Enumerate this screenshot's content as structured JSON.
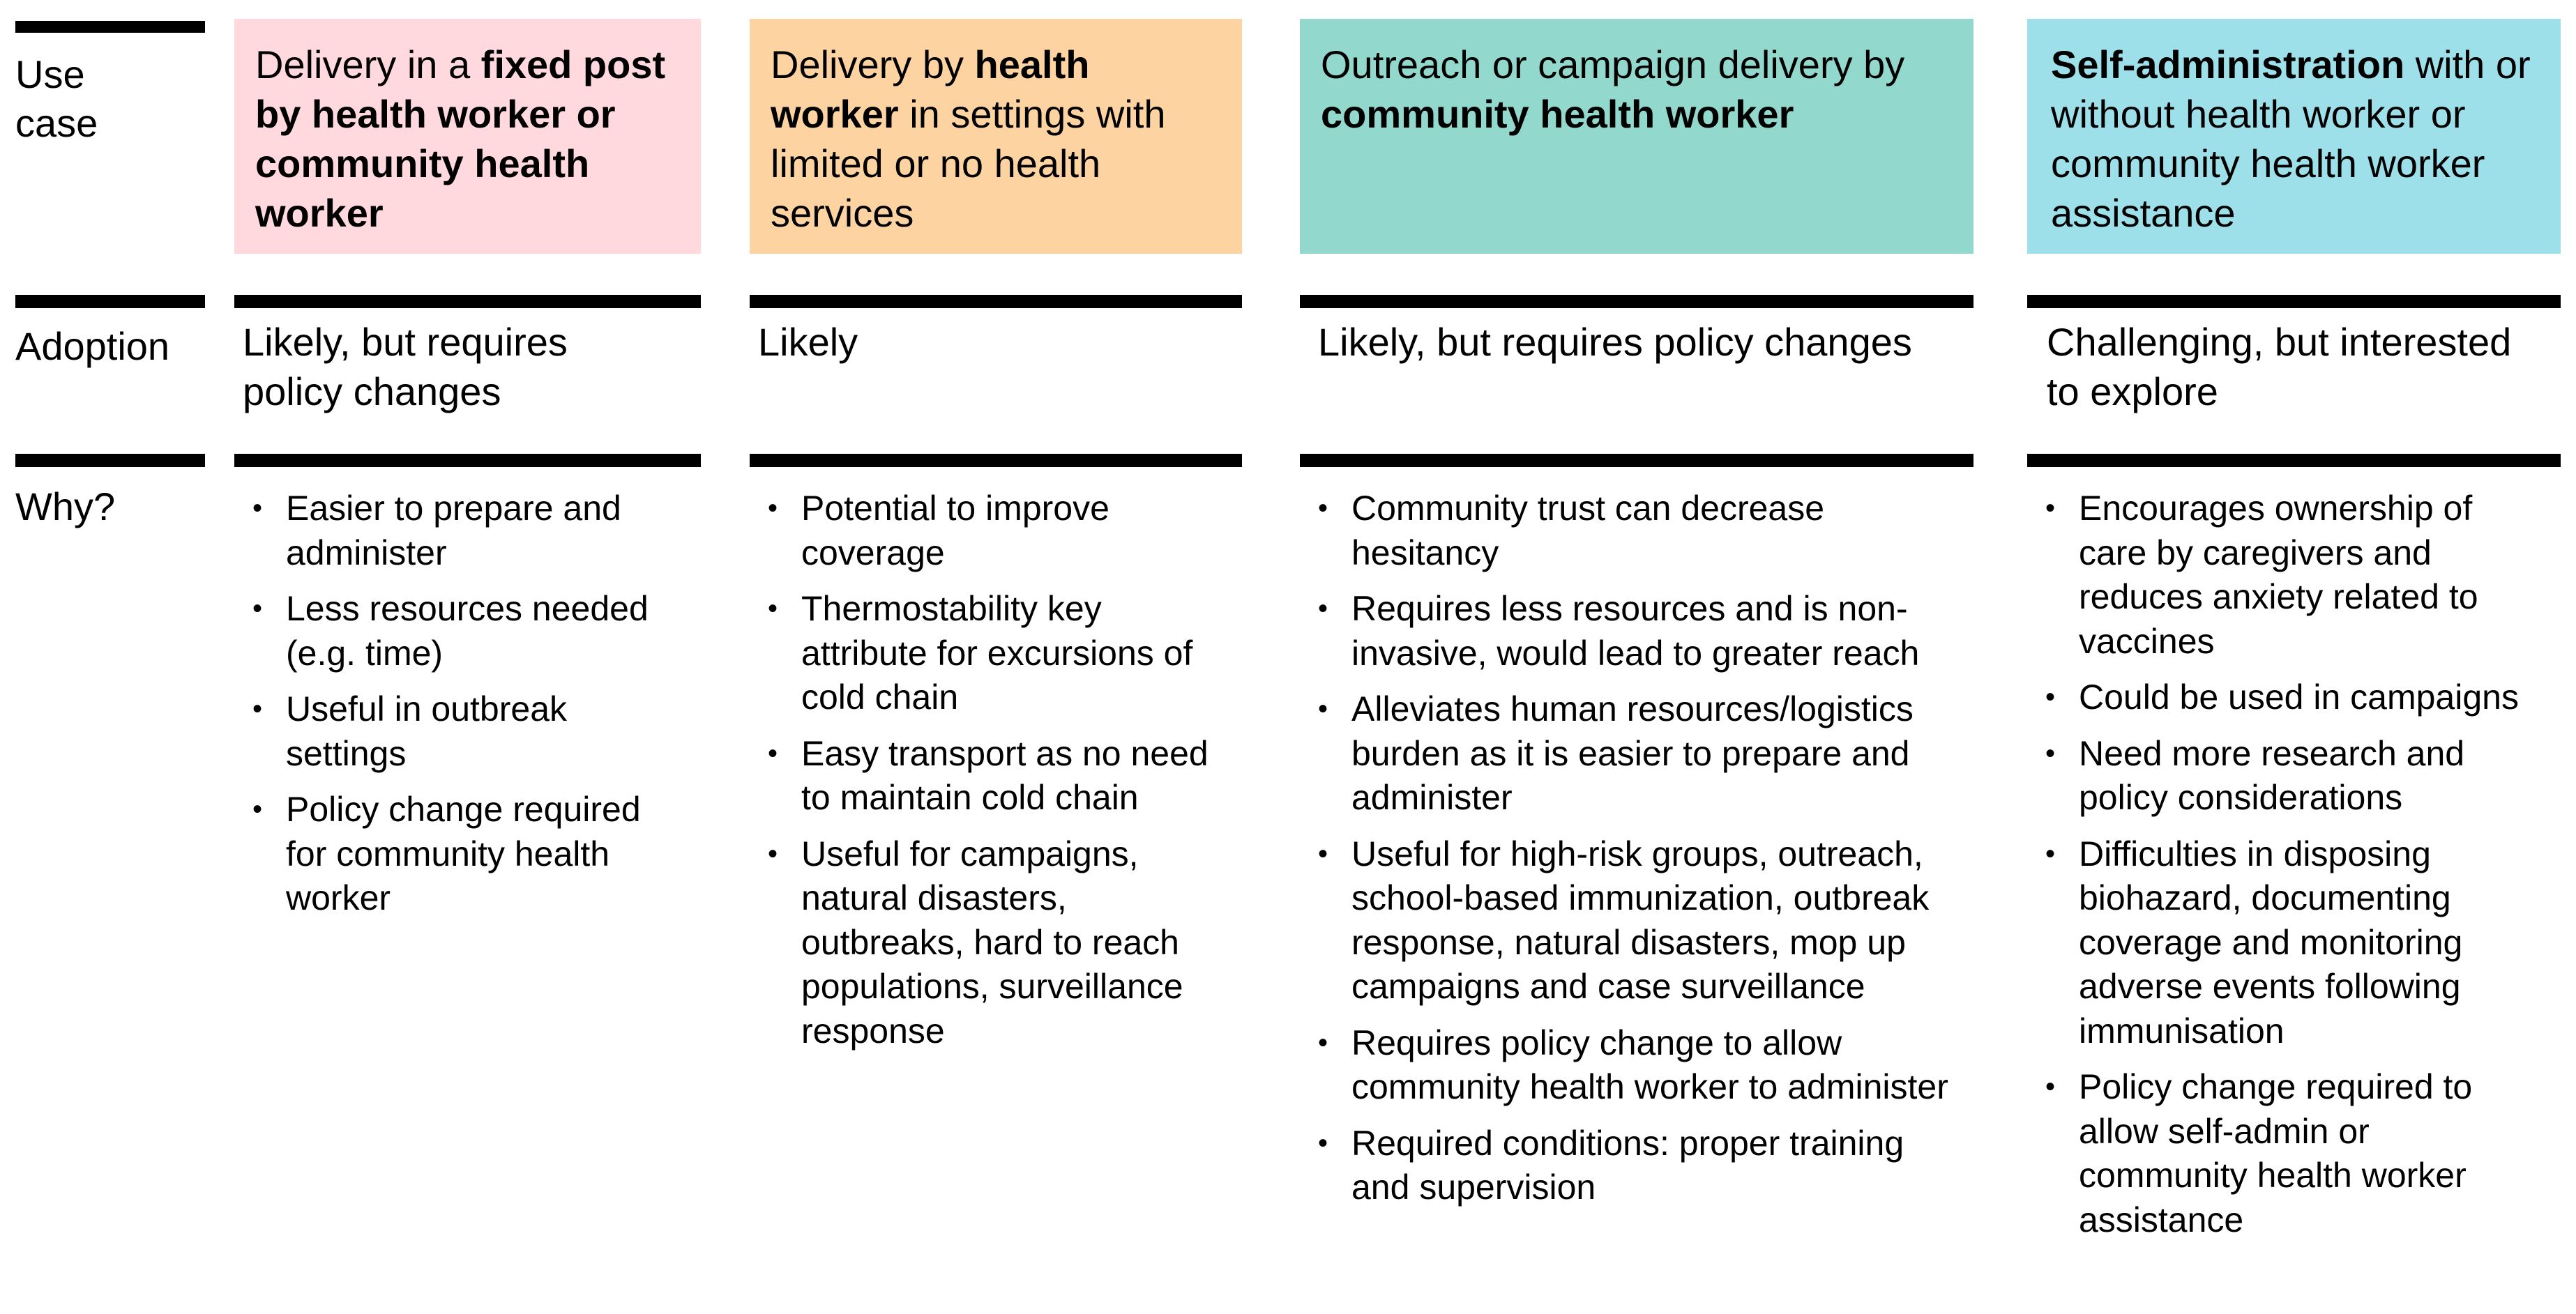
{
  "row_labels": {
    "use_case": "Use case",
    "adoption": "Adoption",
    "why": "Why?"
  },
  "colors": {
    "col1_header_bg": "#FFD9DE",
    "col2_header_bg": "#FDD4A1",
    "col3_header_bg": "#92D8CD",
    "col4_header_bg": "#9DE0EA",
    "rule": "#000000"
  },
  "columns": [
    {
      "header": {
        "part1": "Delivery in a ",
        "bold1": "fixed post by health worker or community health worker",
        "part2": ""
      },
      "adoption": "Likely, but requires policy changes",
      "why": [
        "Easier to prepare and administer",
        "Less resources needed (e.g. time)",
        "Useful in outbreak settings",
        "Policy change required for community health worker"
      ]
    },
    {
      "header": {
        "part1": "Delivery by ",
        "bold1": "health worker",
        "part2": " in settings with limited or no health services"
      },
      "adoption": "Likely",
      "why": [
        "Potential to improve coverage",
        "Thermostability key attribute for excursions of cold chain",
        "Easy transport as no need to maintain cold chain",
        "Useful for campaigns, natural disasters, outbreaks, hard to reach populations, surveillance response"
      ]
    },
    {
      "header": {
        "part1": "Outreach or campaign delivery by ",
        "bold1": "community health worker",
        "part2": ""
      },
      "adoption": "Likely, but requires policy changes",
      "why": [
        "Community trust can decrease hesitancy",
        "Requires less resources and is non-invasive, would lead to greater reach",
        "Alleviates human resources/logistics burden as it is easier to prepare and administer",
        "Useful for high-risk groups, outreach, school-based immunization, outbreak response, natural disasters, mop up campaigns and case surveillance",
        "Requires policy change to allow community health worker to administer",
        "Required conditions: proper training and supervision"
      ]
    },
    {
      "header": {
        "part1": "",
        "bold1": "Self-administration",
        "part2": " with or without health worker or community health worker assistance"
      },
      "adoption": "Challenging, but interested to explore",
      "why": [
        "Encourages ownership of care by caregivers and reduces anxiety related to vaccines",
        "Could be used in campaigns",
        "Need more research and policy considerations",
        "Difficulties in disposing biohazard, documenting coverage and monitoring adverse events following immunisation",
        "Policy change required to allow self-admin or community health worker assistance"
      ]
    }
  ]
}
